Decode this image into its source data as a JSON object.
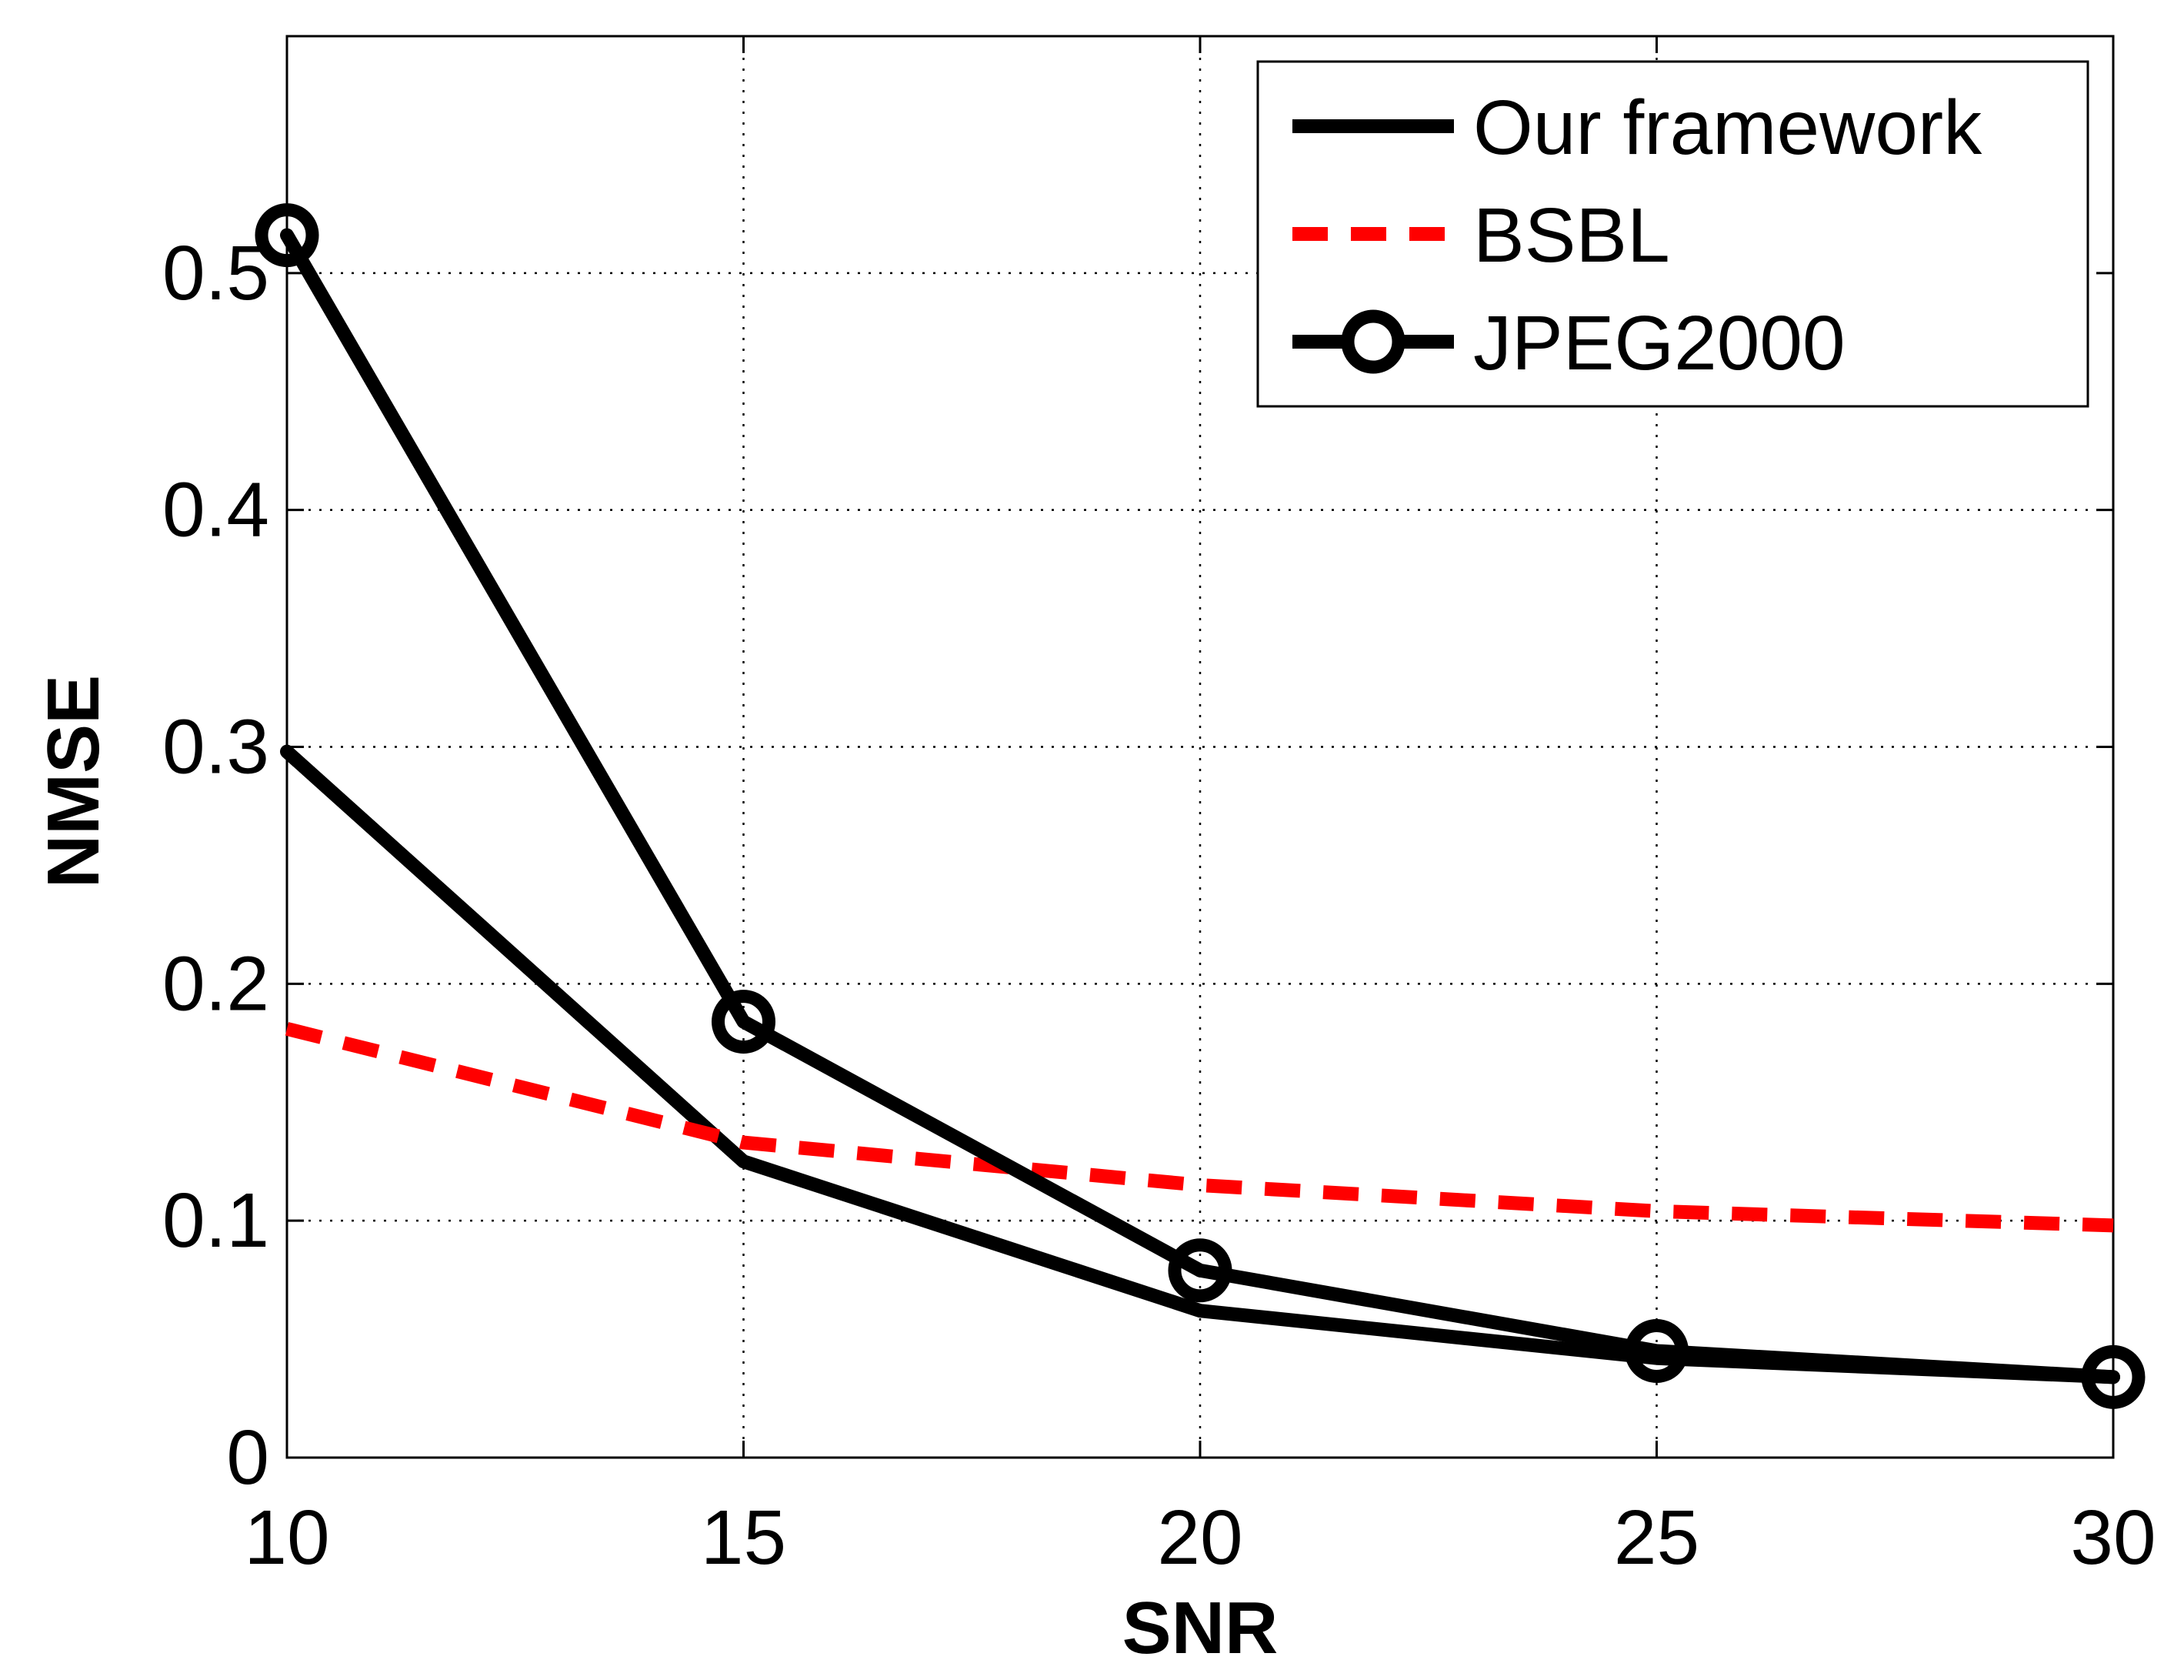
{
  "chart_data": {
    "type": "line",
    "title": "",
    "xlabel": "SNR",
    "ylabel": "NMSE",
    "x": [
      10,
      15,
      20,
      25,
      30
    ],
    "xlim": [
      10,
      30
    ],
    "ylim": [
      0,
      0.6
    ],
    "xticks": [
      10,
      15,
      20,
      25,
      30
    ],
    "xtick_labels": [
      "10",
      "15",
      "20",
      "25",
      "30"
    ],
    "yticks": [
      0,
      0.1,
      0.2,
      0.3,
      0.4,
      0.5
    ],
    "ytick_labels": [
      "0",
      "0.1",
      "0.2",
      "0.3",
      "0.4",
      "0.5"
    ],
    "grid": true,
    "legend_position": "top-right",
    "series": [
      {
        "name": "Our framework",
        "values": [
          0.298,
          0.125,
          0.062,
          0.042,
          0.034
        ],
        "color": "#000000",
        "line_style": "solid",
        "marker": "none"
      },
      {
        "name": "BSBL",
        "values": [
          0.181,
          0.133,
          0.115,
          0.104,
          0.098
        ],
        "color": "#ff0000",
        "line_style": "dashed",
        "marker": "none"
      },
      {
        "name": "JPEG2000",
        "values": [
          0.516,
          0.184,
          0.079,
          0.045,
          0.034
        ],
        "color": "#000000",
        "line_style": "solid",
        "marker": "circle"
      }
    ]
  }
}
